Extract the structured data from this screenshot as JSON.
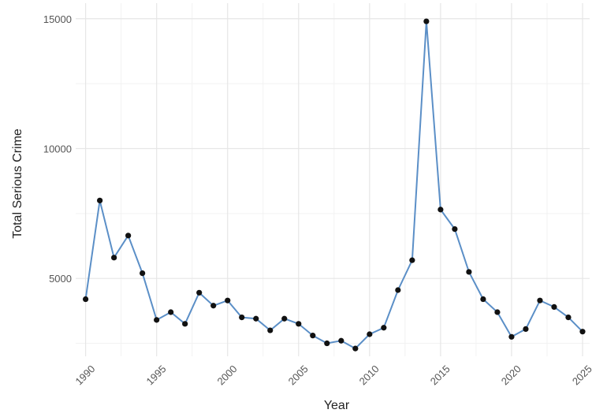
{
  "chart_data": {
    "type": "line",
    "title": "",
    "xlabel": "Year",
    "ylabel": "Total Serious Crime",
    "xlim": [
      1989.3,
      2025.5
    ],
    "ylim": [
      2000,
      15600
    ],
    "x_ticks": [
      1990,
      1995,
      2000,
      2005,
      2010,
      2015,
      2020,
      2025
    ],
    "y_ticks": [
      5000,
      10000,
      15000
    ],
    "grid": true,
    "legend": "none",
    "line_color": "#5b8fc7",
    "point_color": "#111111",
    "series": [
      {
        "x": [
          1990,
          1991,
          1992,
          1993,
          1994,
          1995,
          1996,
          1997,
          1998,
          1999,
          2000,
          2001,
          2002,
          2003,
          2004,
          2005,
          2006,
          2007,
          2008,
          2009,
          2010,
          2011,
          2012,
          2013,
          2014,
          2015,
          2016,
          2017,
          2018,
          2019,
          2020,
          2021,
          2022,
          2023,
          2024,
          2025
        ],
        "y": [
          4200,
          8000,
          5800,
          6650,
          5200,
          3400,
          3700,
          3250,
          4450,
          3950,
          4150,
          3500,
          3450,
          3000,
          3450,
          3250,
          2800,
          2500,
          2600,
          2300,
          2850,
          3100,
          4550,
          5700,
          14900,
          7650,
          6900,
          5250,
          4200,
          3700,
          2750,
          3050,
          4150,
          3900,
          3500,
          2950
        ]
      }
    ]
  }
}
